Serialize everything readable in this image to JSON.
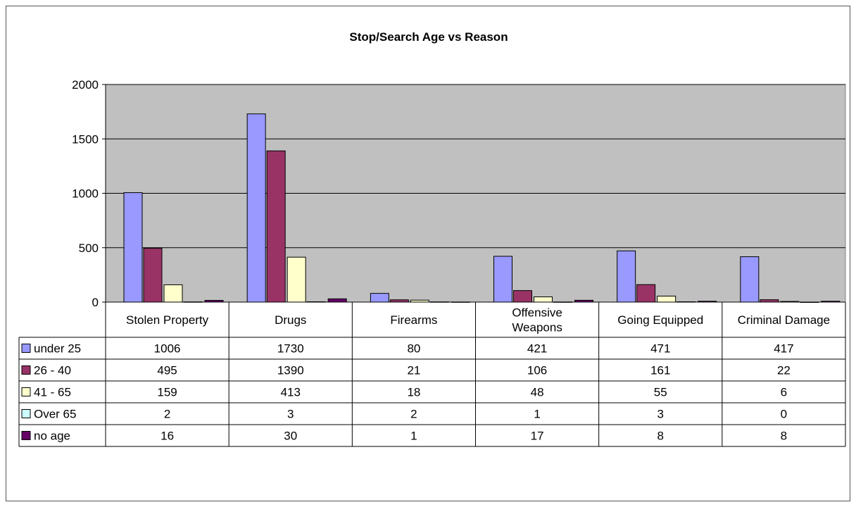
{
  "chart_data": {
    "type": "bar",
    "title": "Stop/Search Age vs Reason",
    "xlabel": "",
    "ylabel": "",
    "ylim": [
      0,
      2000
    ],
    "yticks": [
      0,
      500,
      1000,
      1500,
      2000
    ],
    "grid": true,
    "legend": "data-table-left",
    "categories": [
      "Stolen Property",
      "Drugs",
      "Firearms",
      "Offensive Weapons",
      "Going Equipped",
      "Criminal Damage"
    ],
    "category_lines": [
      [
        "Stolen Property"
      ],
      [
        "Drugs"
      ],
      [
        "Firearms"
      ],
      [
        "Offensive",
        "Weapons"
      ],
      [
        "Going Equipped"
      ],
      [
        "Criminal Damage"
      ]
    ],
    "series": [
      {
        "name": "under 25",
        "color": "#9999ff",
        "values": [
          1006,
          1730,
          80,
          421,
          471,
          417
        ]
      },
      {
        "name": "26 - 40",
        "color": "#993366",
        "values": [
          495,
          1390,
          21,
          106,
          161,
          22
        ]
      },
      {
        "name": "41 - 65",
        "color": "#ffffcc",
        "values": [
          159,
          413,
          18,
          48,
          55,
          6
        ]
      },
      {
        "name": "Over 65",
        "color": "#ccffff",
        "values": [
          2,
          3,
          2,
          1,
          3,
          0
        ]
      },
      {
        "name": "no age",
        "color": "#660066",
        "values": [
          16,
          30,
          1,
          17,
          8,
          8
        ]
      }
    ],
    "plot_background": "#c0c0c0"
  }
}
